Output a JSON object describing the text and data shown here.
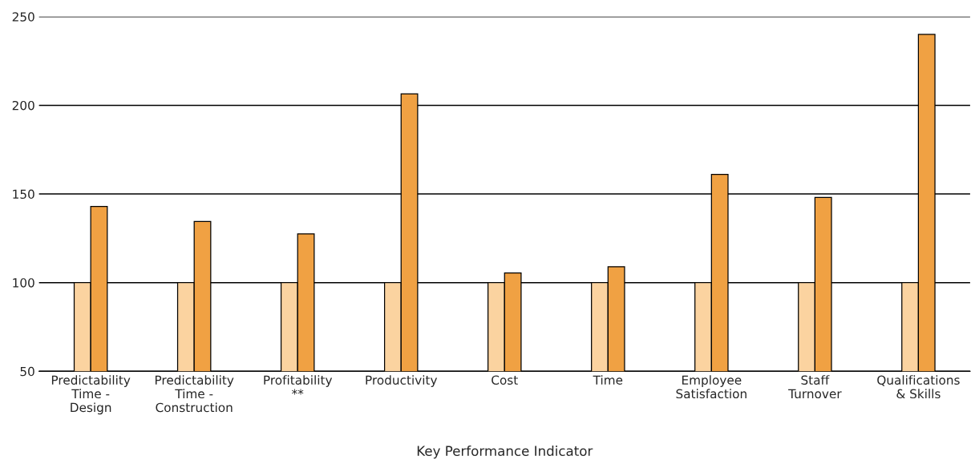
{
  "chart_data": {
    "type": "bar",
    "xlabel": "Key Performance Indicator",
    "categories": [
      "Predictability\nTime -\nDesign",
      "Predictability\nTime -\nConstruction",
      "Profitability\n**",
      "Productivity",
      "Cost",
      "Time",
      "Employee\nSatisfaction",
      "Staff\nTurnover",
      "Qualifications\n& Skills"
    ],
    "series": [
      {
        "color": "#fbd3a0",
        "values": [
          100,
          100,
          100,
          100,
          100,
          100,
          100,
          100,
          100
        ]
      },
      {
        "color": "#f0a143",
        "values": [
          143,
          134.5,
          127.5,
          206.5,
          105.5,
          109,
          161,
          148,
          240
        ]
      }
    ],
    "ylim": [
      50,
      250
    ],
    "yticks": [
      50,
      100,
      150,
      200,
      250
    ],
    "grid": "y",
    "legend": false
  }
}
